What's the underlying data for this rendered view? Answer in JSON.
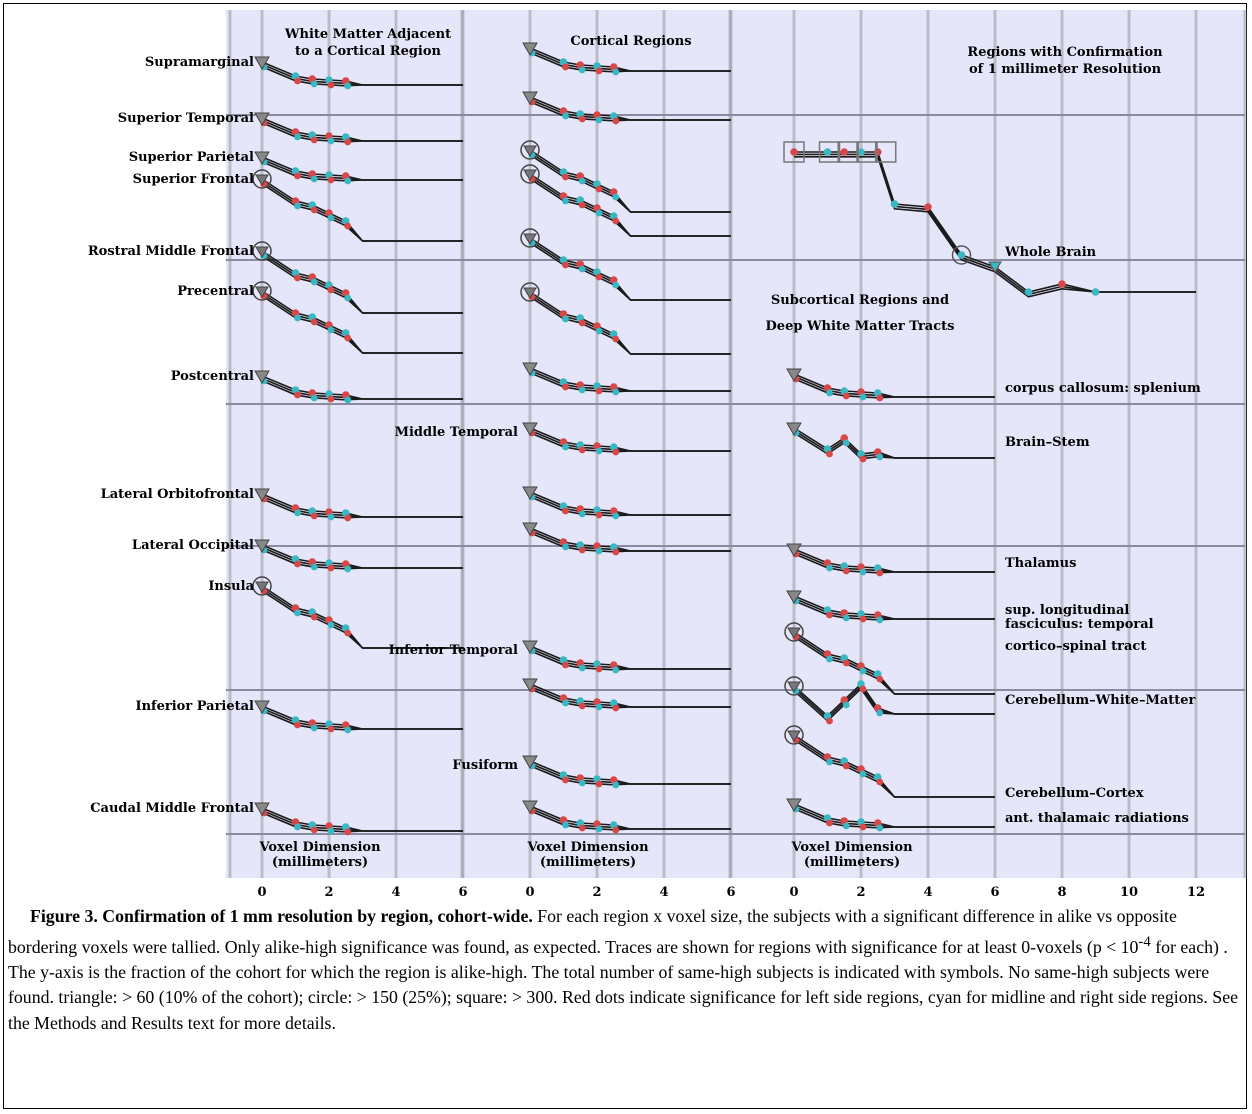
{
  "chart_data": {
    "type": "line",
    "panels": [
      {
        "header": [
          "White Matter Adjacent",
          "to a Cortical Region"
        ],
        "xlabel": [
          "Voxel Dimension",
          "(millimeters)"
        ],
        "xticks": [
          0,
          2,
          4,
          6
        ],
        "xlim": [
          -1,
          6
        ]
      },
      {
        "header": [
          "Cortical Regions"
        ],
        "xlabel": [
          "Voxel Dimension",
          "(millimeters)"
        ],
        "xticks": [
          0,
          2,
          4,
          6
        ],
        "xlim": [
          -1,
          6
        ]
      },
      {
        "header": [
          "Regions with Confirmation",
          "of 1 millimeter Resolution"
        ],
        "subheader": [
          "Subcortical Regions and",
          "Deep White Matter Tracts"
        ],
        "xlabel": [
          "Voxel Dimension",
          "(millimeters)"
        ],
        "xticks": [
          0,
          2,
          4,
          6,
          8,
          10,
          12
        ],
        "xlim": [
          -1,
          12
        ]
      }
    ],
    "legend_symbols": {
      "triangle": "> 60",
      "circle": "> 150",
      "square": "> 300"
    },
    "colors": {
      "left": "#d94848",
      "right_midline": "#39b8c4",
      "trace": "#1a1a1a",
      "background": "#e6e6fa",
      "hline": "#8a8aa0",
      "vline": "#9a9aa2"
    },
    "traces": [
      {
        "panel": 0,
        "label": "Supramarginal",
        "profile": "gentle"
      },
      {
        "panel": 0,
        "label": "Superior Temporal",
        "profile": "gentle"
      },
      {
        "panel": 0,
        "label": "Superior Parietal",
        "profile": "gentle"
      },
      {
        "panel": 0,
        "label": "Superior Frontal",
        "profile": "steep"
      },
      {
        "panel": 0,
        "label": "Rostral Middle Frontal",
        "profile": "steep"
      },
      {
        "panel": 0,
        "label": "Precentral",
        "profile": "steep"
      },
      {
        "panel": 0,
        "label": "Postcentral",
        "profile": "gentle"
      },
      {
        "panel": 0,
        "label": "Lateral Orbitofrontal",
        "profile": "gentle"
      },
      {
        "panel": 0,
        "label": "Lateral Occipital",
        "profile": "gentle"
      },
      {
        "panel": 0,
        "label": "Insula",
        "profile": "steep"
      },
      {
        "panel": 0,
        "label": "Inferior Parietal",
        "profile": "gentle"
      },
      {
        "panel": 0,
        "label": "Caudal Middle Frontal",
        "profile": "gentle"
      },
      {
        "panel": 1,
        "label": "",
        "profile": "gentle"
      },
      {
        "panel": 1,
        "label": "",
        "profile": "gentle"
      },
      {
        "panel": 1,
        "label": "",
        "profile": "steep"
      },
      {
        "panel": 1,
        "label": "",
        "profile": "steep"
      },
      {
        "panel": 1,
        "label": "",
        "profile": "steep"
      },
      {
        "panel": 1,
        "label": "",
        "profile": "steep"
      },
      {
        "panel": 1,
        "label": "",
        "profile": "gentle"
      },
      {
        "panel": 1,
        "label": "Middle Temporal",
        "profile": "gentle"
      },
      {
        "panel": 1,
        "label": "",
        "profile": "gentle"
      },
      {
        "panel": 1,
        "label": "",
        "profile": "gentle"
      },
      {
        "panel": 1,
        "label": "Inferior Temporal",
        "profile": "gentle"
      },
      {
        "panel": 1,
        "label": "",
        "profile": "gentle"
      },
      {
        "panel": 1,
        "label": "Fusiform",
        "profile": "gentle"
      },
      {
        "panel": 1,
        "label": "",
        "profile": "gentle"
      },
      {
        "panel": 2,
        "label": "Whole Brain",
        "profile": "whole"
      },
      {
        "panel": 2,
        "label": "corpus callosum: splenium",
        "profile": "gentle"
      },
      {
        "panel": 2,
        "label": "Brain–Stem",
        "profile": "bump"
      },
      {
        "panel": 2,
        "label": "Thalamus",
        "profile": "gentle"
      },
      {
        "panel": 2,
        "label": [
          "sup. longitudinal",
          "fasciculus: temporal"
        ],
        "profile": "gentle"
      },
      {
        "panel": 2,
        "label": "cortico–spinal tract",
        "profile": "steep"
      },
      {
        "panel": 2,
        "label": "Cerebellum–White–Matter",
        "profile": "dip"
      },
      {
        "panel": 2,
        "label": "Cerebellum–Cortex",
        "profile": "steep"
      },
      {
        "panel": 2,
        "label": "ant. thalamaic radiations",
        "profile": "gentle"
      }
    ]
  },
  "caption": {
    "title": "Figure 3. Confirmation of 1 mm resolution by region, cohort-wide.",
    "body_1": " For each region x voxel size, the subjects with a significant difference in alike vs opposite bordering voxels were tallied. Only alike-high significance was found, as expected. Traces are shown for regions with significance for at least 0-voxels (p < 10",
    "sup": "-4",
    "body_2": " for each) . The y-axis is the fraction of the cohort for which the region is alike-high. The total number of same-high subjects is indicated with symbols. No same-high subjects were found. triangle: > 60 (10% of the cohort); circle: > 150 (25%); square: > 300. Red dots indicate significance for left side regions, cyan for midline and right side regions. See the Methods and Results text for more details."
  }
}
